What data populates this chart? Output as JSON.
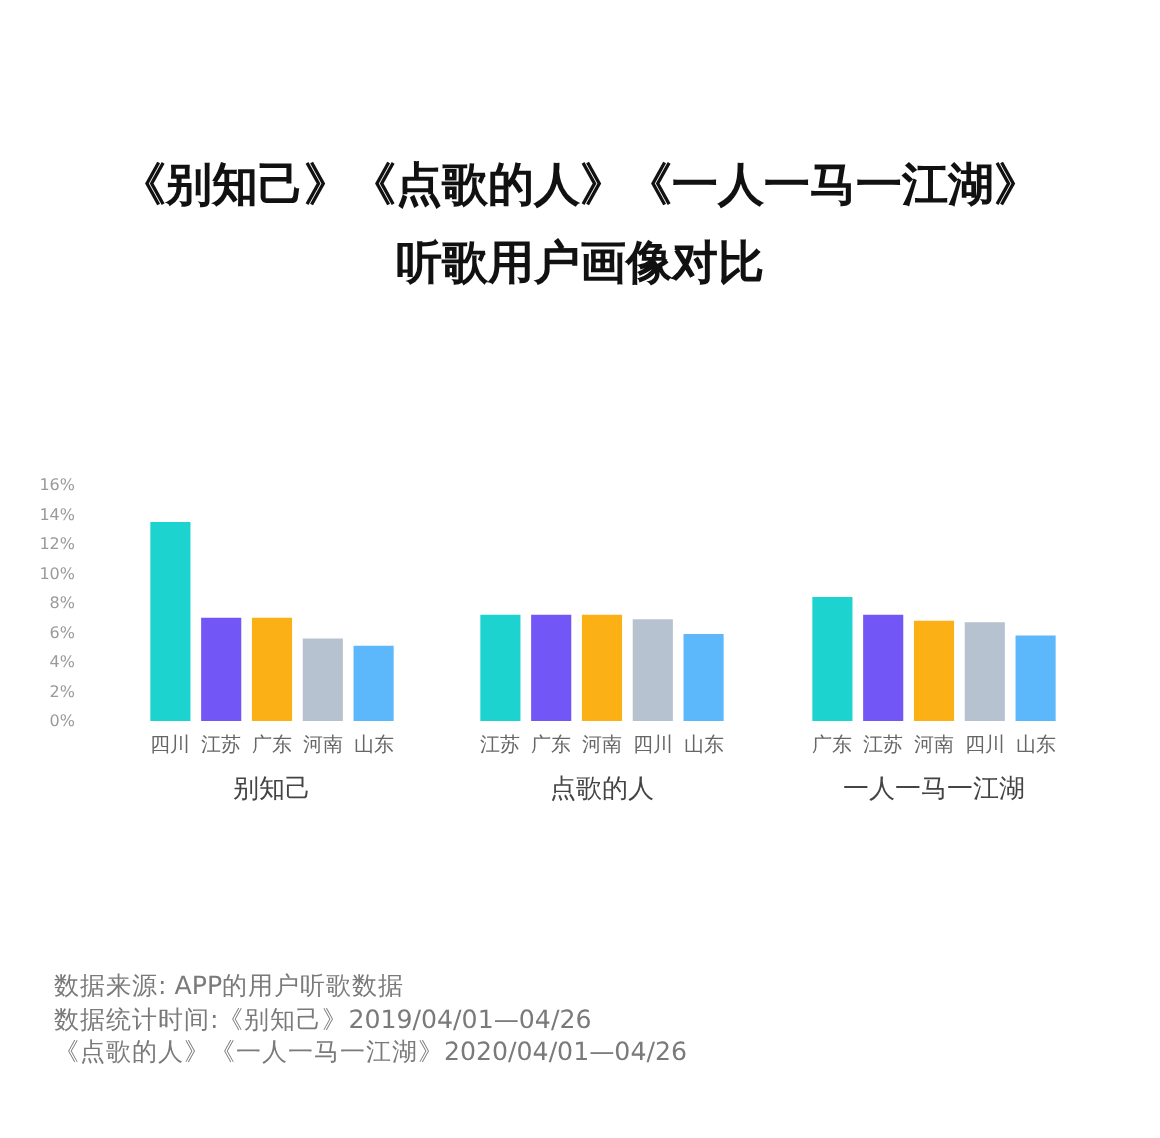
{
  "chart_data": [
    {
      "type": "bar",
      "xlabel": "别知己",
      "categories": [
        "四川",
        "江苏",
        "广东",
        "河南",
        "山东"
      ],
      "values": [
        13.5,
        7.0,
        7.0,
        5.6,
        5.1
      ],
      "colors": [
        "#1dd3cf",
        "#7357f6",
        "#fbb116",
        "#b6c2d0",
        "#5cb8fa"
      ],
      "ylim": [
        0,
        16
      ],
      "yticks": [
        {
          "value": 0,
          "label": "0%"
        },
        {
          "value": 2,
          "label": "2%"
        },
        {
          "value": 4,
          "label": "4%"
        },
        {
          "value": 6,
          "label": "6%"
        },
        {
          "value": 8,
          "label": "8%"
        },
        {
          "value": 10,
          "label": "10%"
        },
        {
          "value": 12,
          "label": "12%"
        },
        {
          "value": 14,
          "label": "14%"
        },
        {
          "value": 16,
          "label": "16%"
        }
      ],
      "annotations": [
        "数据来源: APP的用户听歌数据",
        "数据统计时间:《别知己》2019/04/01—04/26",
        "《点歌的人》《一人一马一江湖》2020/04/01—04/26"
      ]
    },
    {
      "type": "bar",
      "title": "《别知己》《点歌的人》《一人一马一江湖》",
      "subtitle": "听歌用户画像对比",
      "xlabel": "点歌的人",
      "categories": [
        "江苏",
        "广东",
        "河南",
        "四川",
        "山东"
      ],
      "values": [
        7.2,
        7.2,
        7.2,
        6.9,
        5.9
      ],
      "colors": [
        "#1dd3cf",
        "#7357f6",
        "#fbb116",
        "#b6c2d0",
        "#5cb8fa"
      ],
      "ylim": [
        0,
        16
      ],
      "tick_labels": "x"
    },
    {
      "type": "bar",
      "xlabel": "一人一马一江湖",
      "categories": [
        "广东",
        "江苏",
        "河南",
        "四川",
        "山东"
      ],
      "values": [
        8.4,
        7.2,
        6.8,
        6.7,
        5.8
      ],
      "colors": [
        "#1dd3cf",
        "#7357f6",
        "#fbb116",
        "#b6c2d0",
        "#5cb8fa"
      ],
      "ylim": [
        0,
        16
      ],
      "tick_labels": "x"
    }
  ]
}
